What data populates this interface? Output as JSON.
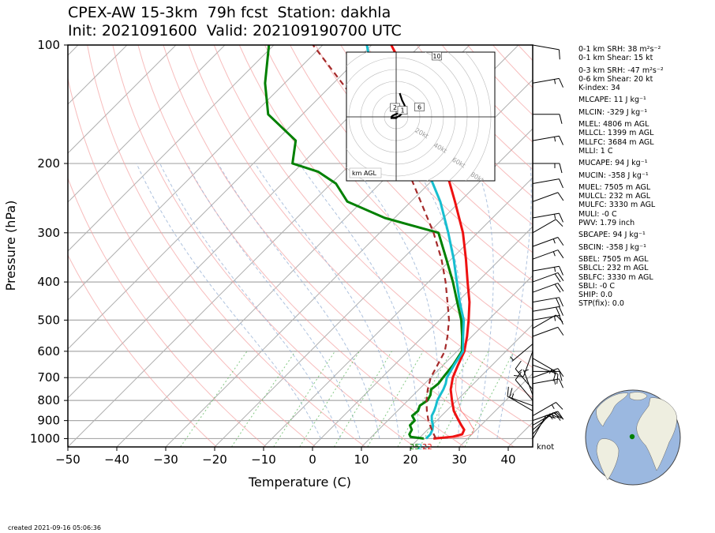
{
  "header": {
    "title_line1": "CPEX-AW 15-3km  79h fcst  Station: dakhla",
    "title_line2": "Init: 2021091600  Valid: 202109190700 UTC"
  },
  "footer": {
    "created": "created 2021-09-16 05:06:36"
  },
  "stats": [
    "0-1 km SRH: 38 m²s⁻²",
    "0-1 km Shear: 15 kt",
    "0-3 km SRH: -47 m²s⁻²",
    "0-6 km Shear: 20 kt",
    "K-index: 34",
    "MLCAPE: 11 J kg⁻¹",
    "MLCIN: -329 J kg⁻¹",
    "MLEL: 4806 m AGL",
    "MLLCL: 1399 m AGL",
    "MLLFC: 3684 m AGL",
    "MLLI: 1 C",
    "MUCAPE: 94 J kg⁻¹",
    "MUCIN: -358 J kg⁻¹",
    "MUEL: 7505 m AGL",
    "MULCL: 232 m AGL",
    "MULFC: 3330 m AGL",
    "MULI: -0 C",
    "PWV: 1.79 inch",
    "SBCAPE: 94 J kg⁻¹",
    "SBCIN: -358 J kg⁻¹",
    "SBEL: 7505 m AGL",
    "SBLCL: 232 m AGL",
    "SBLFC: 3330 m AGL",
    "SBLI: -0 C",
    "SHIP: 0.0",
    "STP(fix): 0.0"
  ],
  "chart_data": {
    "type": "line",
    "subtype": "skew-t log-p",
    "xlabel": "Temperature (C)",
    "ylabel": "Pressure (hPa)",
    "xlim": [
      -50,
      45
    ],
    "ylim": [
      1050,
      100
    ],
    "y_scale": "log",
    "x_ticks": [
      -50,
      -40,
      -30,
      -20,
      -10,
      0,
      10,
      20,
      30,
      40
    ],
    "y_ticks": [
      100,
      200,
      300,
      400,
      500,
      600,
      700,
      800,
      900,
      1000
    ],
    "isotherm_grid": [
      -140,
      -130,
      -120,
      -110,
      -100,
      -90,
      -80,
      -70,
      -60,
      -50,
      -40,
      -30,
      -20,
      -10,
      0,
      10,
      20,
      30,
      40
    ],
    "dry_adiabats_thetaK": [
      250,
      260,
      270,
      280,
      290,
      300,
      310,
      320,
      330,
      340,
      350,
      360,
      370,
      380,
      390,
      400,
      410,
      420,
      430,
      440,
      450,
      460,
      470,
      480
    ],
    "moist_adiabats_start_C": [
      0,
      4,
      8,
      12,
      16,
      20,
      24,
      28,
      32,
      36
    ],
    "mixing_ratio_gkg": [
      0.4,
      1,
      2,
      3,
      5,
      8,
      12,
      16,
      20,
      28
    ],
    "series": [
      {
        "role": "temperature",
        "color": "#ee1111",
        "p": [
          1000,
          990,
          975,
          950,
          925,
          900,
          875,
          850,
          800,
          750,
          700,
          650,
          600,
          550,
          500,
          450,
          400,
          350,
          300,
          250,
          200,
          175,
          150,
          125,
          110,
          100
        ],
        "t": [
          23,
          26.5,
          28,
          27.5,
          26,
          24.5,
          23,
          21.5,
          19,
          16.5,
          14.5,
          13,
          11.5,
          9,
          6,
          2.5,
          -2,
          -7,
          -13,
          -21,
          -31,
          -37,
          -45,
          -55,
          -61,
          -66
        ]
      },
      {
        "role": "virtual temperature",
        "color": "#ff8888",
        "p": [
          1000,
          990,
          975,
          950,
          925,
          900,
          875,
          850,
          800,
          750,
          700
        ],
        "t": [
          26,
          28.5,
          30,
          29.5,
          28,
          26.5,
          24.8,
          23,
          20.2,
          17.5,
          15.2
        ]
      },
      {
        "role": "dewpoint",
        "color": "#008000",
        "p": [
          1000,
          990,
          975,
          950,
          925,
          900,
          875,
          850,
          825,
          800,
          775,
          750,
          725,
          700,
          650,
          600,
          550,
          500,
          450,
          400,
          350,
          300,
          275,
          250,
          225,
          210,
          200,
          175,
          150,
          125,
          100
        ],
        "t": [
          21,
          18,
          17.2,
          16.8,
          15.5,
          15.5,
          14,
          14.2,
          13.5,
          14,
          13.5,
          12.5,
          12.8,
          12.5,
          12,
          11,
          8,
          4.5,
          0,
          -5,
          -11,
          -18,
          -32,
          -43,
          -49,
          -55,
          -62,
          -66,
          -77,
          -84,
          -91
        ]
      },
      {
        "role": "wet-bulb",
        "color": "#17becf",
        "p": [
          1000,
          975,
          950,
          925,
          900,
          875,
          850,
          825,
          800,
          775,
          750,
          725,
          700,
          650,
          600,
          550,
          500,
          450,
          400,
          350,
          300,
          250,
          200,
          175,
          150,
          125,
          110,
          100
        ],
        "t": [
          21.5,
          21.5,
          21,
          20.2,
          19,
          18,
          17.5,
          16.8,
          16,
          15.5,
          15,
          14.3,
          13.3,
          12.2,
          11.2,
          8.2,
          5,
          0.5,
          -4.2,
          -9.5,
          -16,
          -24,
          -35,
          -40,
          -48,
          -59,
          -67,
          -71
        ]
      },
      {
        "role": "parcel",
        "color": "#a52a2a",
        "dashed": true,
        "p": [
          1000,
          975,
          950,
          925,
          900,
          850,
          800,
          750,
          700,
          650,
          600,
          550,
          500,
          450,
          400,
          350,
          300,
          250,
          200,
          150,
          100
        ],
        "t": [
          23.5,
          22.2,
          20.9,
          19.6,
          18.3,
          16,
          13.8,
          11.8,
          10,
          8.8,
          7.5,
          5,
          2,
          -2,
          -6.5,
          -12,
          -19,
          -28,
          -39,
          -57,
          -82
        ]
      }
    ],
    "surface_labels": [
      "25",
      "21",
      "22"
    ],
    "wind_barbs": {
      "unit_label": "knot",
      "p": [
        1000,
        975,
        950,
        925,
        900,
        875,
        850,
        825,
        800,
        775,
        750,
        725,
        700,
        675,
        650,
        625,
        600,
        575,
        550,
        525,
        500,
        475,
        450,
        425,
        400,
        375,
        350,
        325,
        300,
        275,
        250,
        225,
        200,
        175,
        150,
        125,
        100
      ],
      "spd": [
        10,
        10,
        15,
        15,
        20,
        15,
        10,
        15,
        10,
        5,
        15,
        15,
        15,
        10,
        10,
        15,
        10,
        5,
        10,
        10,
        15,
        20,
        20,
        20,
        20,
        15,
        15,
        15,
        10,
        15,
        10,
        10,
        15,
        15,
        10,
        15,
        10
      ],
      "dir": [
        30,
        40,
        50,
        60,
        70,
        60,
        300,
        290,
        320,
        340,
        320,
        80,
        70,
        90,
        110,
        120,
        200,
        230,
        70,
        60,
        80,
        80,
        80,
        70,
        70,
        80,
        70,
        70,
        60,
        80,
        70,
        80,
        90,
        80,
        90,
        80,
        100
      ]
    },
    "hodograph": {
      "label": "km AGL",
      "ring_labels": [
        "20kt",
        "40kt",
        "60kt",
        "80kt"
      ],
      "height_labels": [
        "2",
        "1",
        "6",
        "10"
      ],
      "u": [
        2,
        -1,
        -3,
        -4,
        -4,
        -2,
        0,
        1,
        3,
        5,
        7,
        8,
        7,
        6,
        5,
        4,
        3
      ],
      "v": [
        3,
        2,
        1,
        0,
        -1,
        -1,
        -1,
        0,
        1,
        3,
        5,
        7,
        10,
        12,
        14,
        17,
        20
      ]
    }
  }
}
